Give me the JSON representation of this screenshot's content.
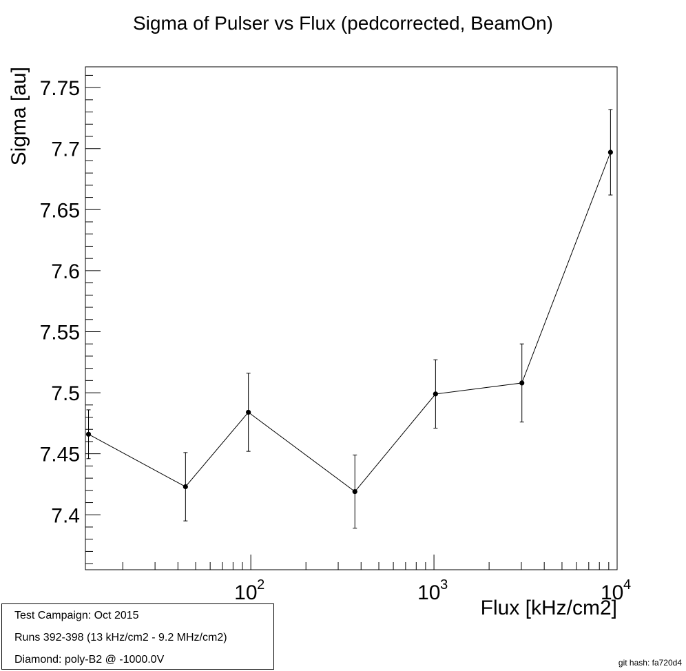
{
  "chart_data": {
    "type": "line",
    "title": "Sigma of Pulser vs Flux (pedcorrected, BeamOn)",
    "xlabel": "Flux [kHz/cm2]",
    "ylabel": "Sigma [au]",
    "x_scale": "log",
    "xlim": [
      12.5,
      10000
    ],
    "ylim": [
      7.355,
      7.767
    ],
    "grid": false,
    "y_ticks": [
      "7.4",
      "7.45",
      "7.5",
      "7.55",
      "7.6",
      "7.65",
      "7.7",
      "7.75"
    ],
    "x_tick_labels": [
      {
        "base": "10",
        "exp": "2"
      },
      {
        "base": "10",
        "exp": "3"
      },
      {
        "base": "10",
        "exp": "4"
      }
    ],
    "series": [
      {
        "x": [
          13,
          44,
          97,
          370,
          1020,
          3020,
          9200
        ],
        "y": [
          7.466,
          7.423,
          7.484,
          7.419,
          7.499,
          7.508,
          7.697
        ],
        "y_err": [
          0.02,
          0.028,
          0.032,
          0.03,
          0.028,
          0.032,
          0.035
        ]
      }
    ]
  },
  "info": {
    "line1": "Test Campaign: Oct 2015",
    "line2": "Runs 392-398 (13 kHz/cm2 - 9.2 MHz/cm2)",
    "line3": "Diamond: poly-B2 @ -1000.0V"
  },
  "git_hash": "git hash: fa720d4"
}
